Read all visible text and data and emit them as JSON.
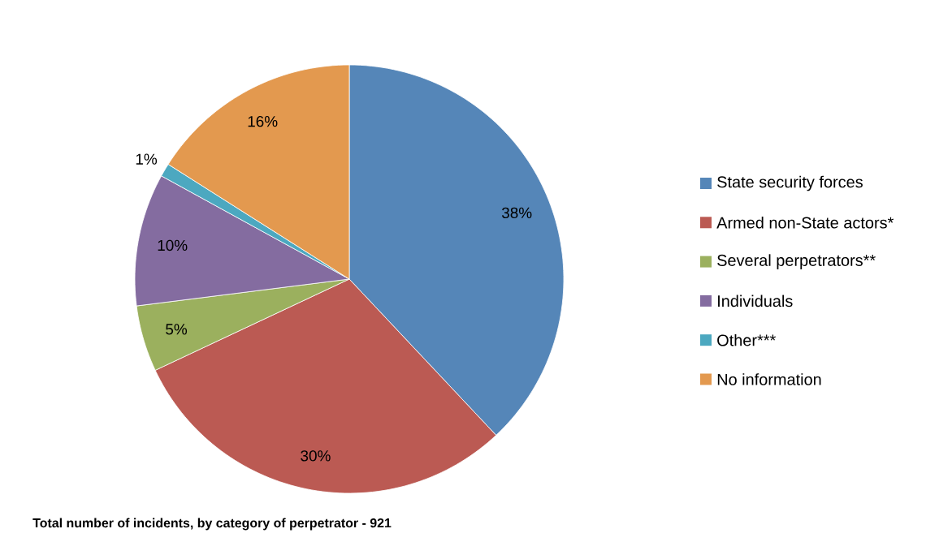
{
  "chart_data": {
    "type": "pie",
    "categories": [
      "State security forces",
      "Armed non-State actors*",
      "Several perpetrators**",
      "Individuals",
      "Other***",
      "No information"
    ],
    "values": [
      38,
      30,
      5,
      10,
      1,
      16
    ],
    "value_labels": [
      "38%",
      "30%",
      "5%",
      "10%",
      "1%",
      "16%"
    ],
    "colors": [
      "#5586b8",
      "#bb5a53",
      "#9bb05e",
      "#846ca0",
      "#4ca8c0",
      "#e3994f"
    ],
    "legend": "right",
    "annotations": [
      "Total number of incidents, by category of perpetrator - 921"
    ]
  }
}
